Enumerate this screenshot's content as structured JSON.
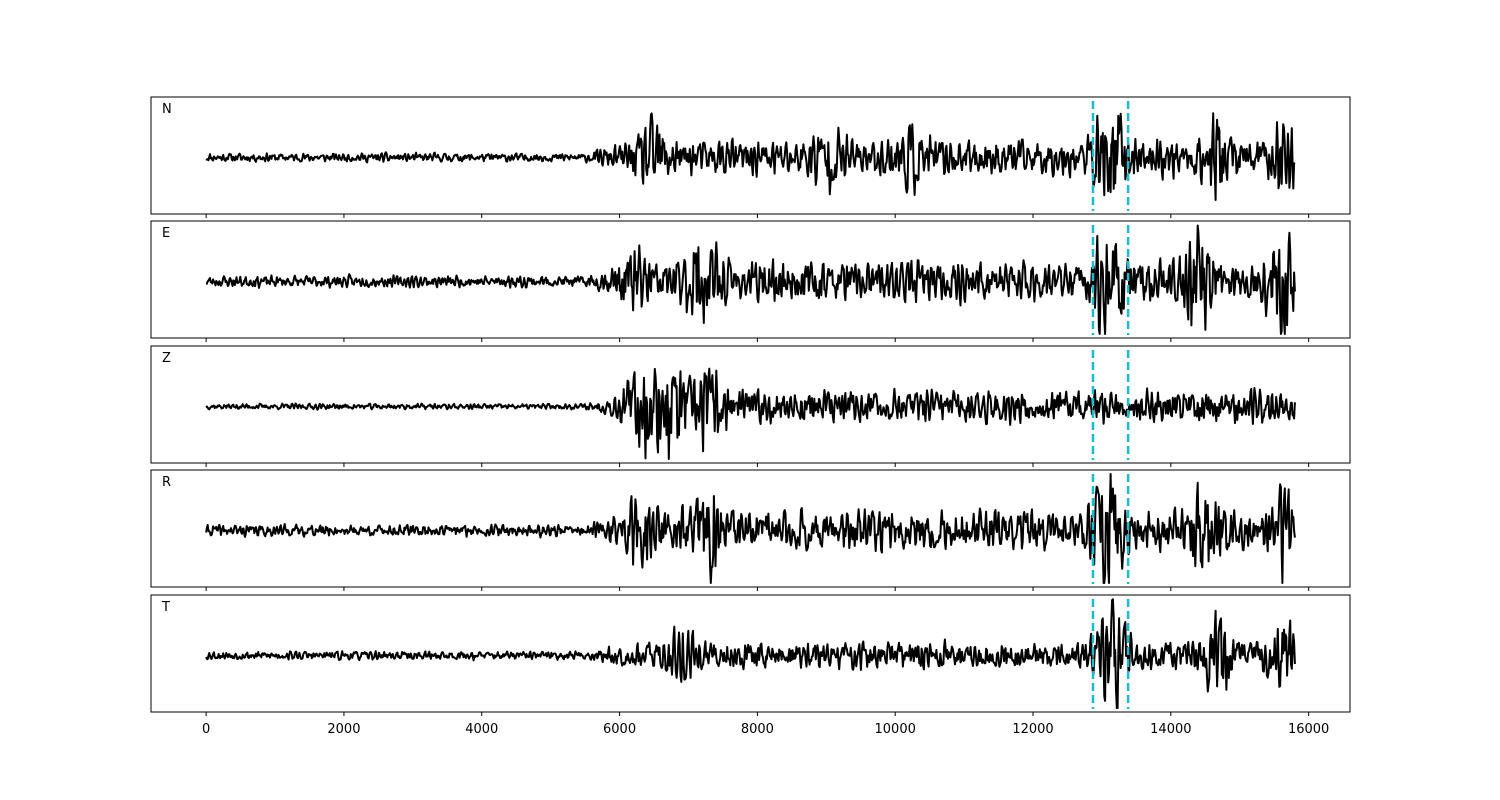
{
  "chart_data": {
    "type": "line",
    "panels": [
      {
        "label": "N",
        "seed": 11,
        "events": [
          {
            "at": 6500,
            "amp": 0.55
          },
          {
            "at": 9000,
            "amp": 0.45
          },
          {
            "at": 10200,
            "amp": 0.45
          },
          {
            "at": 13150,
            "amp": 1.0
          },
          {
            "at": 14650,
            "amp": 0.7
          },
          {
            "at": 15650,
            "amp": 0.5
          }
        ],
        "base": 0.09,
        "late": 0.38
      },
      {
        "label": "E",
        "seed": 23,
        "events": [
          {
            "at": 6200,
            "amp": 0.5
          },
          {
            "at": 7200,
            "amp": 0.75
          },
          {
            "at": 13100,
            "amp": 1.0
          },
          {
            "at": 14400,
            "amp": 0.75
          },
          {
            "at": 15650,
            "amp": 0.85
          }
        ],
        "base": 0.12,
        "late": 0.42
      },
      {
        "label": "Z",
        "seed": 37,
        "events": [
          {
            "at": 6300,
            "amp": 0.7
          },
          {
            "at": 6750,
            "amp": 1.0
          },
          {
            "at": 7300,
            "amp": 0.6
          }
        ],
        "base": 0.06,
        "late": 0.35
      },
      {
        "label": "R",
        "seed": 41,
        "events": [
          {
            "at": 6300,
            "amp": 0.45
          },
          {
            "at": 7300,
            "amp": 0.75
          },
          {
            "at": 13100,
            "amp": 1.0
          },
          {
            "at": 14500,
            "amp": 0.7
          },
          {
            "at": 15650,
            "amp": 0.65
          }
        ],
        "base": 0.12,
        "late": 0.42
      },
      {
        "label": "T",
        "seed": 53,
        "events": [
          {
            "at": 6900,
            "amp": 0.4
          },
          {
            "at": 13150,
            "amp": 1.0
          },
          {
            "at": 14650,
            "amp": 0.65
          },
          {
            "at": 15650,
            "amp": 0.75
          }
        ],
        "base": 0.09,
        "late": 0.3
      }
    ],
    "x_start": 0,
    "x_end": 15800,
    "xlim": [
      -800,
      16600
    ],
    "xticks": [
      "0",
      "2000",
      "4000",
      "6000",
      "8000",
      "10000",
      "12000",
      "14000",
      "16000"
    ],
    "xtick_values": [
      0,
      2000,
      4000,
      6000,
      8000,
      10000,
      12000,
      14000,
      16000
    ],
    "markers": [
      12870,
      13380
    ],
    "colors": {
      "trace": "#000000",
      "marker": "#17becf",
      "frame": "#000000"
    },
    "xlabel": "",
    "ylabel": "",
    "title": "",
    "grid": false
  }
}
